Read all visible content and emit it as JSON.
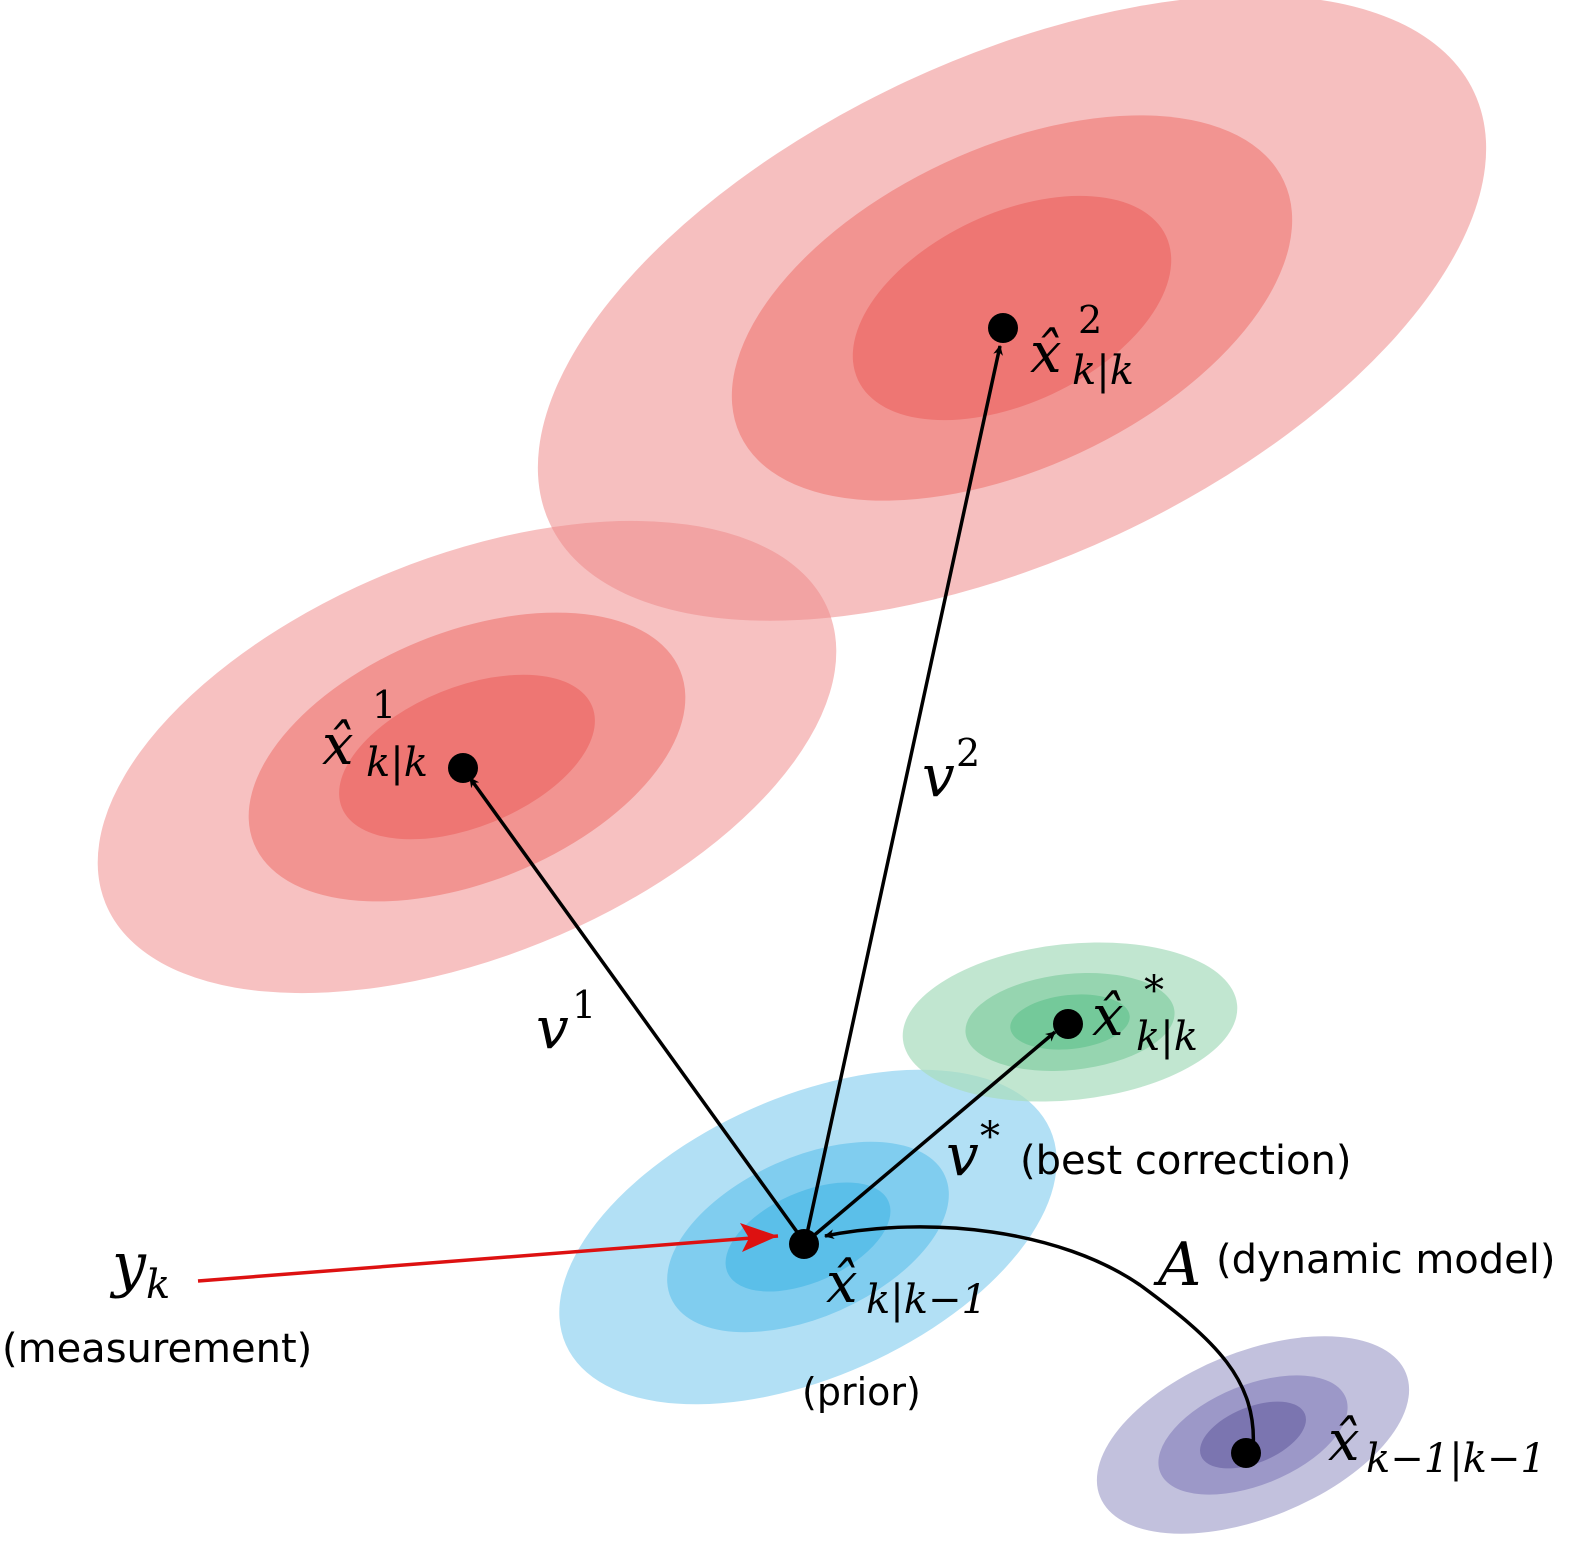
{
  "colors": {
    "red_outer": "#f7c1c1",
    "red_mid": "#f29491",
    "red_inner": "#ee7673",
    "green_outer": "#c4e6d2",
    "green_mid": "#96d5b0",
    "green_inner": "#74c99a",
    "blue_outer": "#b2e0f5",
    "blue_mid": "#80cdef",
    "blue_inner": "#5bbfe9",
    "purple_outer": "#c2c1dd",
    "purple_mid": "#9c98c8",
    "purple_inner": "#7b75b0",
    "measurement_arrow": "#dd1111",
    "arrow": "#000000"
  },
  "labels": {
    "x2": {
      "hat": "x̂",
      "sub": "k|k",
      "sup": "2"
    },
    "x1": {
      "hat": "x̂",
      "sub": "k|k",
      "sup": "1"
    },
    "xstar": {
      "hat": "x̂",
      "sub": "k|k",
      "sup": "*"
    },
    "xprior": {
      "hat": "x̂",
      "sub": "k|k−1"
    },
    "xprev": {
      "hat": "x̂",
      "sub": "k−1|k−1"
    },
    "v1": {
      "base": "v",
      "sup": "1"
    },
    "v2": {
      "base": "v",
      "sup": "2"
    },
    "vstar": {
      "base": "v",
      "sup": "*",
      "note": "(best correction)"
    },
    "y": {
      "base": "y",
      "sub": "k",
      "note": "(measurement)"
    },
    "A": {
      "base": "A",
      "note": "(dynamic model)"
    },
    "prior_note": "(prior)"
  }
}
